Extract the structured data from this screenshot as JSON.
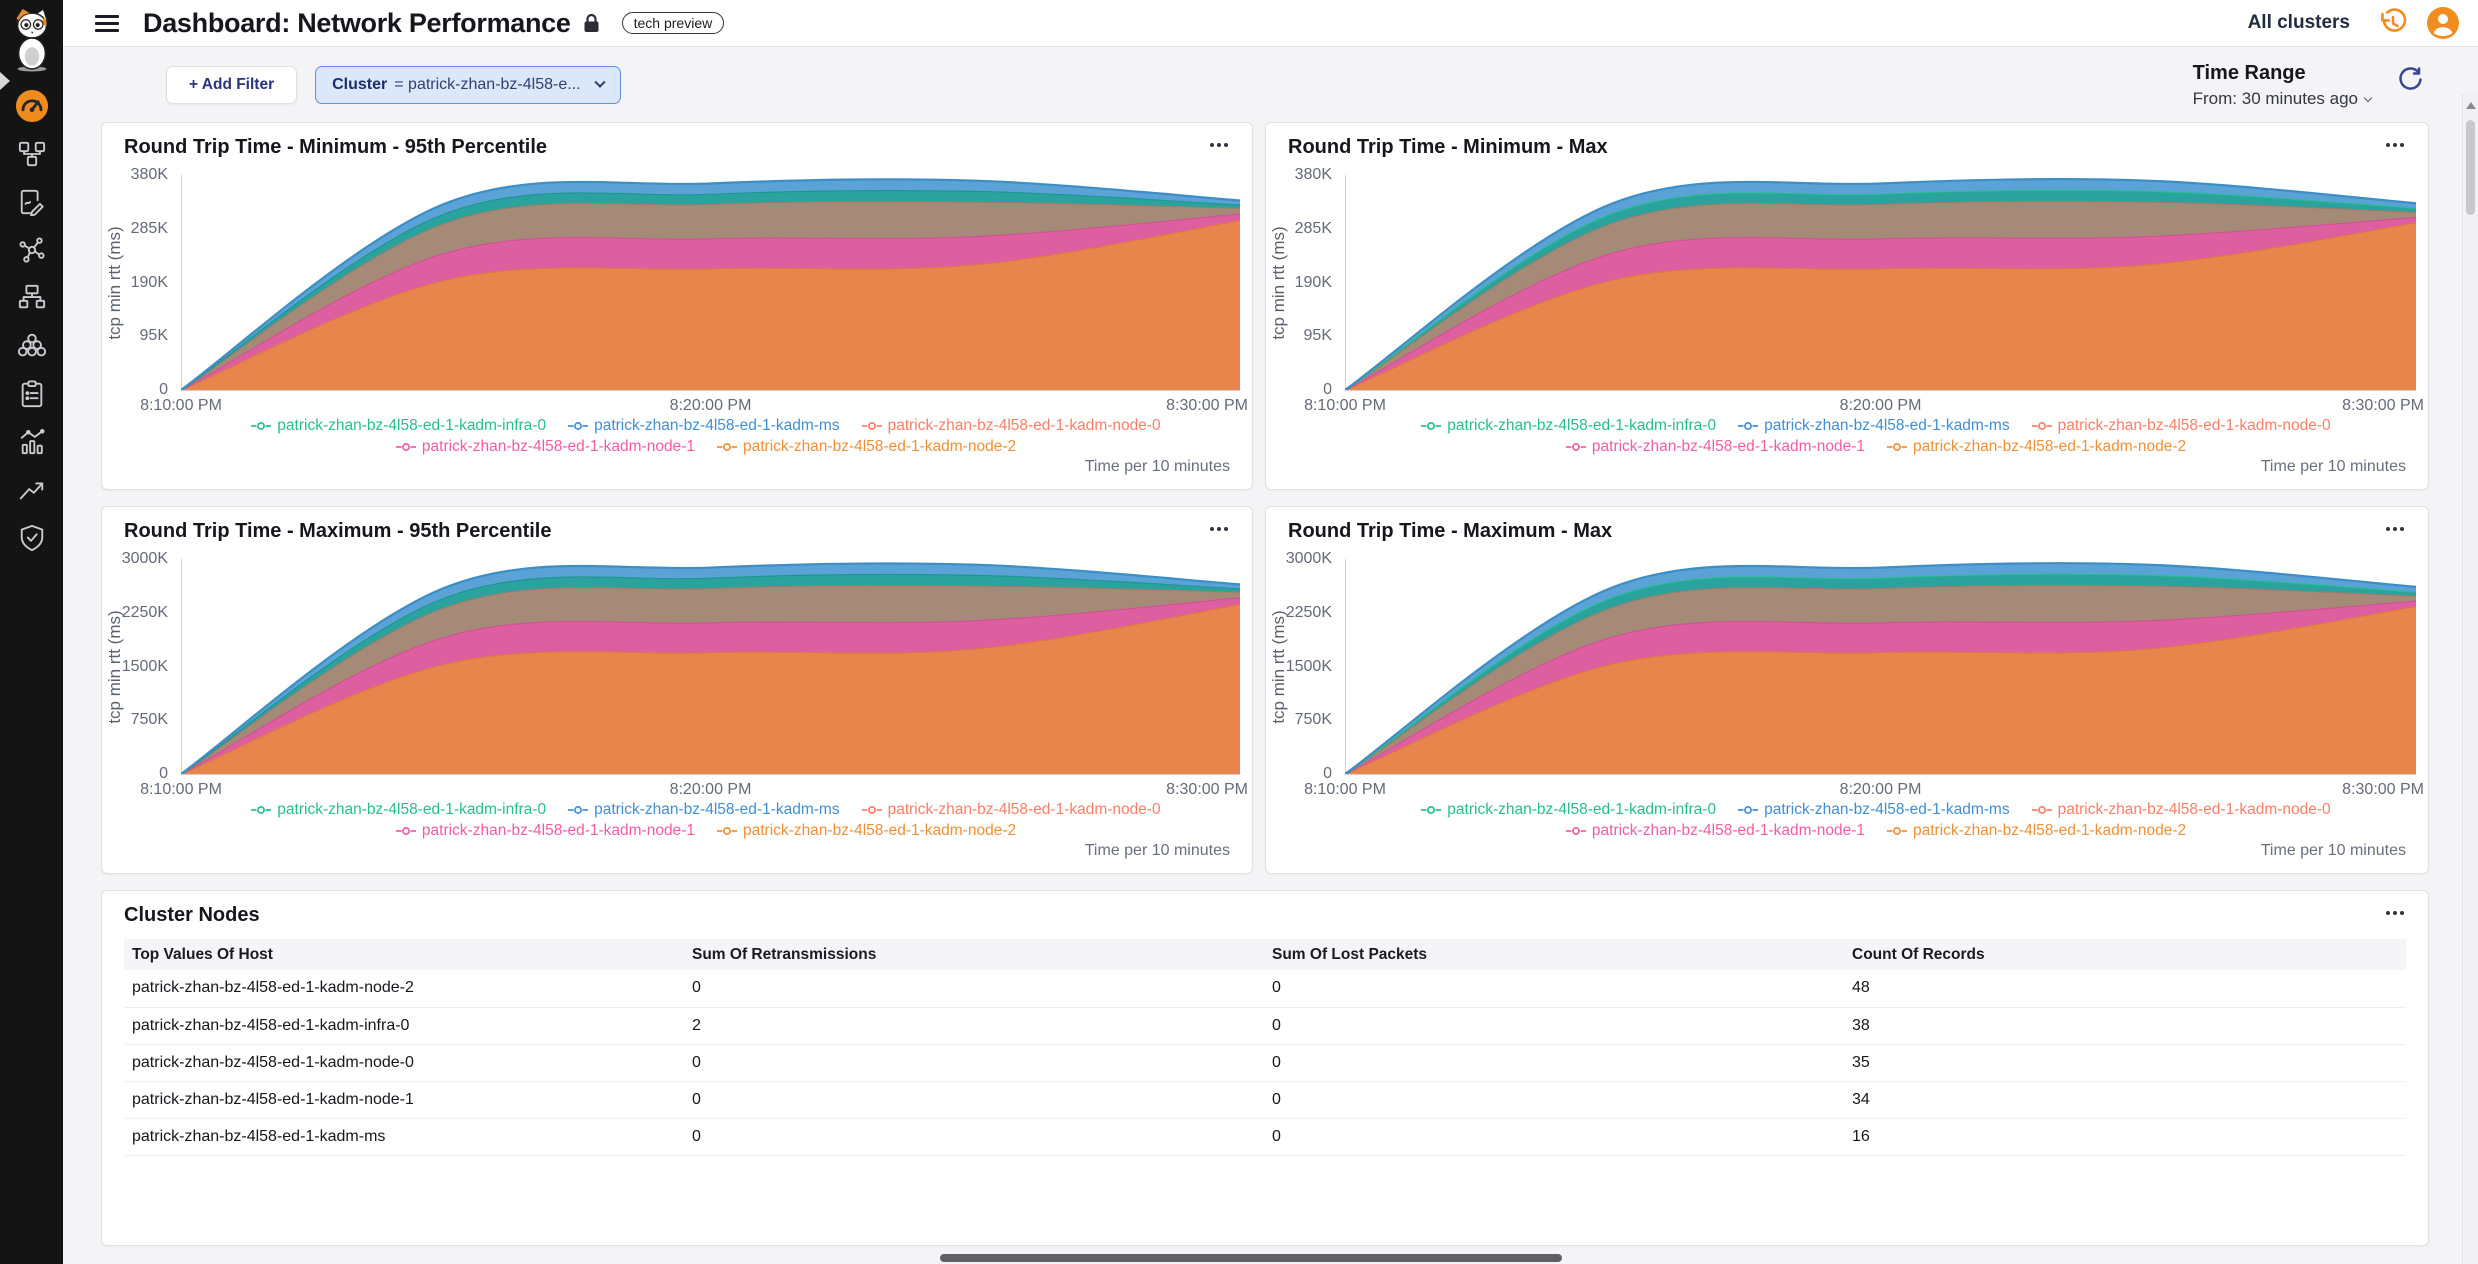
{
  "header": {
    "title": "Dashboard: Network Performance",
    "badge": "tech preview",
    "cluster_scope": "All clusters"
  },
  "toolbar": {
    "add_filter": "+ Add Filter",
    "filter_key": "Cluster",
    "filter_value": "= patrick-zhan-bz-4l58-e...",
    "time_range_label": "Time Range",
    "time_range_value": "From: 30 minutes ago"
  },
  "sidebar": {
    "icons": [
      "cat-logo",
      "dashboards-gauge",
      "topology",
      "reports",
      "connections",
      "infrastructure",
      "cluster-group",
      "tasks",
      "statistics",
      "trends",
      "security"
    ],
    "accent_orange": "#f08c1e"
  },
  "charts": [
    {
      "type": "area",
      "title": "Round Trip Time - Minimum - 95th Percentile",
      "y_label": "tcp min rtt (ms)",
      "y_scale_k": 380,
      "y_ticks": [
        "380K",
        "285K",
        "190K",
        "95K",
        "0"
      ],
      "x_ticks": [
        "8:10:00 PM",
        "8:20:00 PM",
        "8:30:00 PM"
      ],
      "data_x": [
        "8:10",
        "8:15",
        "8:20",
        "8:25",
        "8:30"
      ],
      "caption": "Time per 10 minutes",
      "series": [
        {
          "name": "patrick-zhan-bz-4l58-ed-1-kadm-node-2",
          "fill": "#e8854d",
          "stroke": "#df7a40",
          "cumulative_k": [
            0,
            195,
            215,
            222,
            300
          ]
        },
        {
          "name": "patrick-zhan-bz-4l58-ed-1-kadm-node-1",
          "fill": "#dd5f9f",
          "stroke": "#d44f96",
          "cumulative_k": [
            0,
            243,
            268,
            272,
            312
          ]
        },
        {
          "name": "patrick-zhan-bz-4l58-ed-1-kadm-node-0",
          "fill": "#a68a78",
          "stroke": "#9a7e6b",
          "cumulative_k": [
            0,
            296,
            329,
            333,
            322
          ]
        },
        {
          "name": "patrick-zhan-bz-4l58-ed-1-kadm-infra-0",
          "fill": "#2aa39e",
          "stroke": "#1d968f",
          "cumulative_k": [
            0,
            313,
            347,
            352,
            328
          ]
        },
        {
          "name": "patrick-zhan-bz-4l58-ed-1-kadm-ms",
          "fill": "#5ba3d7",
          "stroke": "#3d8ec6",
          "cumulative_k": [
            0,
            330,
            365,
            370,
            335
          ]
        }
      ],
      "legend": [
        {
          "label": "patrick-zhan-bz-4l58-ed-1-kadm-infra-0",
          "color": "#26bf8c"
        },
        {
          "label": "patrick-zhan-bz-4l58-ed-1-kadm-ms",
          "color": "#3f8fd5"
        },
        {
          "label": "patrick-zhan-bz-4l58-ed-1-kadm-node-0",
          "color": "#fb7e66"
        },
        {
          "label": "patrick-zhan-bz-4l58-ed-1-kadm-node-1",
          "color": "#f25ca5"
        },
        {
          "label": "patrick-zhan-bz-4l58-ed-1-kadm-node-2",
          "color": "#ef9036"
        }
      ]
    },
    {
      "type": "area",
      "title": "Round Trip Time - Minimum - Max",
      "y_label": "tcp min rtt (ms)",
      "y_scale_k": 380,
      "y_ticks": [
        "380K",
        "285K",
        "190K",
        "95K",
        "0"
      ],
      "x_ticks": [
        "8:10:00 PM",
        "8:20:00 PM",
        "8:30:00 PM"
      ],
      "data_x": [
        "8:10",
        "8:15",
        "8:20",
        "8:25",
        "8:30"
      ],
      "caption": "Time per 10 minutes",
      "series": [
        {
          "name": "patrick-zhan-bz-4l58-ed-1-kadm-node-2",
          "fill": "#e8854d",
          "stroke": "#df7a40",
          "cumulative_k": [
            0,
            195,
            215,
            222,
            296
          ]
        },
        {
          "name": "patrick-zhan-bz-4l58-ed-1-kadm-node-1",
          "fill": "#dd5f9f",
          "stroke": "#d44f96",
          "cumulative_k": [
            0,
            243,
            268,
            272,
            306
          ]
        },
        {
          "name": "patrick-zhan-bz-4l58-ed-1-kadm-node-0",
          "fill": "#a68a78",
          "stroke": "#9a7e6b",
          "cumulative_k": [
            0,
            296,
            329,
            333,
            315
          ]
        },
        {
          "name": "patrick-zhan-bz-4l58-ed-1-kadm-infra-0",
          "fill": "#2aa39e",
          "stroke": "#26bf8c",
          "cumulative_k": [
            0,
            313,
            347,
            352,
            322
          ]
        },
        {
          "name": "patrick-zhan-bz-4l58-ed-1-kadm-ms",
          "fill": "#5ba3d7",
          "stroke": "#3d8ec6",
          "cumulative_k": [
            0,
            330,
            365,
            370,
            330
          ]
        }
      ],
      "legend": [
        {
          "label": "patrick-zhan-bz-4l58-ed-1-kadm-infra-0",
          "color": "#26bf8c"
        },
        {
          "label": "patrick-zhan-bz-4l58-ed-1-kadm-ms",
          "color": "#3f8fd5"
        },
        {
          "label": "patrick-zhan-bz-4l58-ed-1-kadm-node-0",
          "color": "#fb7e66"
        },
        {
          "label": "patrick-zhan-bz-4l58-ed-1-kadm-node-1",
          "color": "#f25ca5"
        },
        {
          "label": "patrick-zhan-bz-4l58-ed-1-kadm-node-2",
          "color": "#ef9036"
        }
      ]
    },
    {
      "type": "area",
      "title": "Round Trip Time - Maximum - 95th Percentile",
      "y_label": "tcp min rtt (ms)",
      "y_scale_k": 3000,
      "y_ticks": [
        "3000K",
        "2250K",
        "1500K",
        "750K",
        "0"
      ],
      "x_ticks": [
        "8:10:00 PM",
        "8:20:00 PM",
        "8:30:00 PM"
      ],
      "data_x": [
        "8:10",
        "8:15",
        "8:20",
        "8:25",
        "8:30"
      ],
      "caption": "Time per 10 minutes",
      "series": [
        {
          "name": "patrick-zhan-bz-4l58-ed-1-kadm-node-2",
          "fill": "#e8854d",
          "stroke": "#df7a40",
          "cumulative_k": [
            0,
            1540,
            1700,
            1750,
            2370
          ]
        },
        {
          "name": "patrick-zhan-bz-4l58-ed-1-kadm-node-1",
          "fill": "#dd5f9f",
          "stroke": "#d44f96",
          "cumulative_k": [
            0,
            1920,
            2115,
            2145,
            2465
          ]
        },
        {
          "name": "patrick-zhan-bz-4l58-ed-1-kadm-node-0",
          "fill": "#a68a78",
          "stroke": "#9a7e6b",
          "cumulative_k": [
            0,
            2335,
            2595,
            2630,
            2545
          ]
        },
        {
          "name": "patrick-zhan-bz-4l58-ed-1-kadm-infra-0",
          "fill": "#2aa39e",
          "stroke": "#1d968f",
          "cumulative_k": [
            0,
            2470,
            2740,
            2780,
            2590
          ]
        },
        {
          "name": "patrick-zhan-bz-4l58-ed-1-kadm-ms",
          "fill": "#5ba3d7",
          "stroke": "#3d8ec6",
          "cumulative_k": [
            0,
            2605,
            2880,
            2920,
            2645
          ]
        }
      ],
      "legend": [
        {
          "label": "patrick-zhan-bz-4l58-ed-1-kadm-infra-0",
          "color": "#26bf8c"
        },
        {
          "label": "patrick-zhan-bz-4l58-ed-1-kadm-ms",
          "color": "#3f8fd5"
        },
        {
          "label": "patrick-zhan-bz-4l58-ed-1-kadm-node-0",
          "color": "#fb7e66"
        },
        {
          "label": "patrick-zhan-bz-4l58-ed-1-kadm-node-1",
          "color": "#f25ca5"
        },
        {
          "label": "patrick-zhan-bz-4l58-ed-1-kadm-node-2",
          "color": "#ef9036"
        }
      ]
    },
    {
      "type": "area",
      "title": "Round Trip Time - Maximum - Max",
      "y_label": "tcp min rtt (ms)",
      "y_scale_k": 3000,
      "y_ticks": [
        "3000K",
        "2250K",
        "1500K",
        "750K",
        "0"
      ],
      "x_ticks": [
        "8:10:00 PM",
        "8:20:00 PM",
        "8:30:00 PM"
      ],
      "data_x": [
        "8:10",
        "8:15",
        "8:20",
        "8:25",
        "8:30"
      ],
      "caption": "Time per 10 minutes",
      "series": [
        {
          "name": "patrick-zhan-bz-4l58-ed-1-kadm-node-2",
          "fill": "#e8854d",
          "stroke": "#df7a40",
          "cumulative_k": [
            0,
            1540,
            1700,
            1750,
            2340
          ]
        },
        {
          "name": "patrick-zhan-bz-4l58-ed-1-kadm-node-1",
          "fill": "#dd5f9f",
          "stroke": "#d44f96",
          "cumulative_k": [
            0,
            1920,
            2115,
            2145,
            2420
          ]
        },
        {
          "name": "patrick-zhan-bz-4l58-ed-1-kadm-node-0",
          "fill": "#a68a78",
          "stroke": "#9a7e6b",
          "cumulative_k": [
            0,
            2335,
            2595,
            2630,
            2490
          ]
        },
        {
          "name": "patrick-zhan-bz-4l58-ed-1-kadm-infra-0",
          "fill": "#2aa39e",
          "stroke": "#26bf8c",
          "cumulative_k": [
            0,
            2470,
            2740,
            2780,
            2545
          ]
        },
        {
          "name": "patrick-zhan-bz-4l58-ed-1-kadm-ms",
          "fill": "#5ba3d7",
          "stroke": "#3d8ec6",
          "cumulative_k": [
            0,
            2605,
            2880,
            2920,
            2610
          ]
        }
      ],
      "legend": [
        {
          "label": "patrick-zhan-bz-4l58-ed-1-kadm-infra-0",
          "color": "#26bf8c"
        },
        {
          "label": "patrick-zhan-bz-4l58-ed-1-kadm-ms",
          "color": "#3f8fd5"
        },
        {
          "label": "patrick-zhan-bz-4l58-ed-1-kadm-node-0",
          "color": "#fb7e66"
        },
        {
          "label": "patrick-zhan-bz-4l58-ed-1-kadm-node-1",
          "color": "#f25ca5"
        },
        {
          "label": "patrick-zhan-bz-4l58-ed-1-kadm-node-2",
          "color": "#ef9036"
        }
      ]
    }
  ],
  "table": {
    "title": "Cluster Nodes",
    "columns": [
      "Top Values Of Host",
      "Sum Of Retransmissions",
      "Sum Of Lost Packets",
      "Count Of Records"
    ],
    "rows": [
      [
        "patrick-zhan-bz-4l58-ed-1-kadm-node-2",
        "0",
        "0",
        "48"
      ],
      [
        "patrick-zhan-bz-4l58-ed-1-kadm-infra-0",
        "2",
        "0",
        "38"
      ],
      [
        "patrick-zhan-bz-4l58-ed-1-kadm-node-0",
        "0",
        "0",
        "35"
      ],
      [
        "patrick-zhan-bz-4l58-ed-1-kadm-node-1",
        "0",
        "0",
        "34"
      ],
      [
        "patrick-zhan-bz-4l58-ed-1-kadm-ms",
        "0",
        "0",
        "16"
      ]
    ]
  }
}
